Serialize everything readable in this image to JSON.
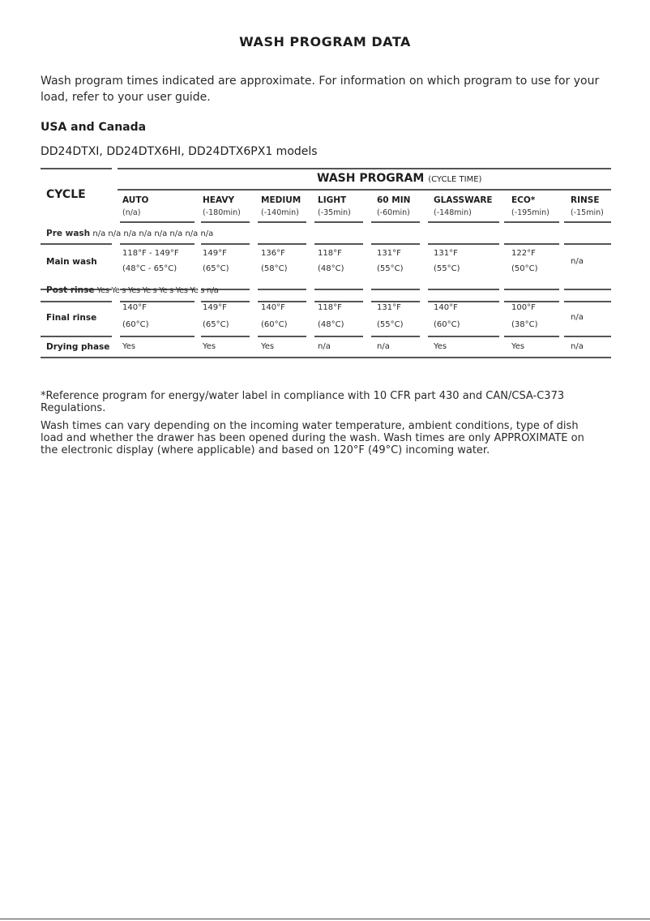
{
  "title": "WASH PROGRAM DATA",
  "intro": "Wash program times indicated are approximate. For information on which program to use for your load, refer to your user guide.",
  "region": "USA and Canada",
  "models": "DD24DTXI, DD24DTX6HI, DD24DTX6PX1 models",
  "table": {
    "cycle_header": "CYCLE",
    "wash_program_header": "WASH PROGRAM",
    "wash_program_sub": "(CYCLE TIME)",
    "programs": [
      {
        "label": "AUTO",
        "time": "(n/a)"
      },
      {
        "label": "HEAVY",
        "time": "(-180min)"
      },
      {
        "label": "MEDIUM",
        "time": "(-140min)"
      },
      {
        "label": "LIGHT",
        "time": "(-35min)"
      },
      {
        "label": "60 MIN",
        "time": "(-60min)"
      },
      {
        "label": "GLASSWARE",
        "time": "(-148min)"
      },
      {
        "label": "ECO*",
        "time": "(-195min)"
      },
      {
        "label": "RINSE",
        "time": "(-15min)"
      }
    ],
    "pre_wash": {
      "label": "Pre wash",
      "values": "n/a n/a n/a n/a n/a n/a n/a n/a"
    },
    "main_wash": {
      "label": "Main wash",
      "values": [
        [
          "118°F - 149°F",
          "(48°C - 65°C)"
        ],
        [
          "149°F",
          "(65°C)"
        ],
        [
          "136°F",
          "(58°C)"
        ],
        [
          "118°F",
          "(48°C)"
        ],
        [
          "131°F",
          "(55°C)"
        ],
        [
          "131°F",
          "(55°C)"
        ],
        [
          "122°F",
          "(50°C)"
        ],
        [
          "n/a"
        ]
      ]
    },
    "post_rinse": {
      "label": "Post rinse",
      "values": "Yes Ye s Yes Ye s Ye s Yes Ye s n/a"
    },
    "final_rinse": {
      "label": "Final rinse",
      "values": [
        [
          "140°F",
          "(60°C)"
        ],
        [
          "149°F",
          "(65°C)"
        ],
        [
          "140°F",
          "(60°C)"
        ],
        [
          "118°F",
          "(48°C)"
        ],
        [
          "131°F",
          "(55°C)"
        ],
        [
          "140°F",
          "(60°C)"
        ],
        [
          "100°F",
          "(38°C)"
        ],
        [
          "n/a"
        ]
      ]
    },
    "drying_phase": {
      "label": "Drying phase",
      "values": [
        "Yes",
        "Yes",
        "Yes",
        "n/a",
        "n/a",
        "Yes",
        "Yes",
        "n/a"
      ]
    }
  },
  "notes": [
    "*Reference program for energy/water label in compliance with 10 CFR part 430 and CAN/CSA-C373 Regulations.",
    "Wash times can vary depending on the incoming water temperature, ambient conditions, type of dish load and whether the drawer has been opened during the wash. Wash times are only APPROXIMATE on the electronic display (where applicable) and based on 120°F (49°C) incoming water."
  ]
}
